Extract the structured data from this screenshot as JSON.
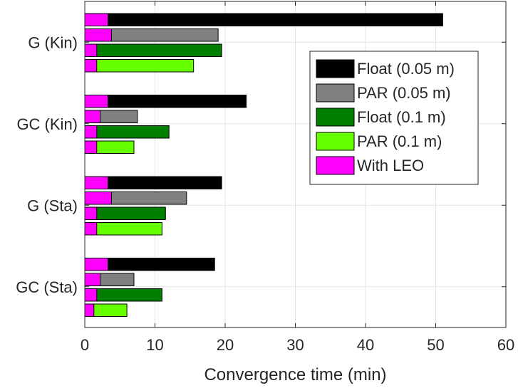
{
  "chart_data": {
    "type": "bar",
    "orientation": "horizontal",
    "title": "",
    "xlabel": "Convergence time (min)",
    "ylabel": "",
    "xlim": [
      0,
      60
    ],
    "xticks": [
      0,
      10,
      20,
      30,
      40,
      50,
      60
    ],
    "grid": true,
    "legend_position": "top-right",
    "categories": [
      "G (Kin)",
      "GC (Kin)",
      "G (Sta)",
      "GC (Sta)"
    ],
    "series": [
      {
        "name": "Float (0.05 m)",
        "color": "#000000",
        "values": [
          51,
          23,
          19.5,
          18.5
        ]
      },
      {
        "name": "PAR (0.05 m)",
        "color": "#808080",
        "values": [
          19,
          7.5,
          14.5,
          7
        ]
      },
      {
        "name": "Float (0.1 m)",
        "color": "#007f00",
        "values": [
          19.5,
          12,
          11.5,
          11
        ]
      },
      {
        "name": "PAR (0.1 m)",
        "color": "#66ff00",
        "values": [
          15.5,
          7,
          11,
          6
        ]
      }
    ],
    "with_leo": {
      "name": "With LEO",
      "color": "#ff00ff",
      "values": [
        [
          3.3,
          3.8,
          1.7,
          1.7
        ],
        [
          3.3,
          2.2,
          1.7,
          1.7
        ],
        [
          3.3,
          3.8,
          1.7,
          1.7
        ],
        [
          3.3,
          2.2,
          1.7,
          1.3
        ]
      ]
    }
  }
}
